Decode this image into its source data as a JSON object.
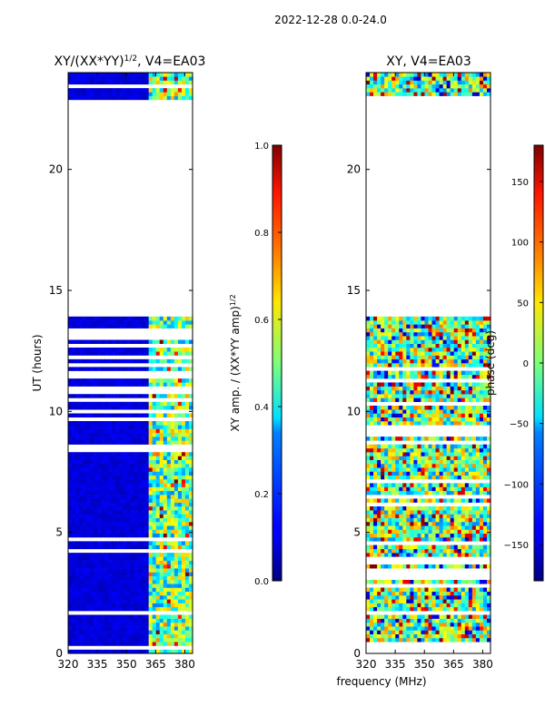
{
  "page_title": "2022-12-28 0.0-24.0",
  "chart_data": [
    {
      "type": "heatmap",
      "title": "XY/(XX*YY)",
      "title_exponent": "1/2",
      "title_suffix": ", V4=EA03",
      "xlabel": "",
      "ylabel": "UT (hours)",
      "xlim": [
        320,
        384
      ],
      "ylim": [
        0,
        24
      ],
      "x_ticks": [
        320,
        335,
        350,
        365,
        380
      ],
      "y_ticks": [
        0,
        5,
        10,
        15,
        20
      ],
      "data_gap_hours": [
        13.8,
        22.8
      ],
      "bright_band_mhz": [
        361,
        384
      ],
      "colorbar": {
        "label": "XY amp. / (XX*YY amp)",
        "label_exponent": "1/2",
        "range": [
          0.0,
          1.0
        ],
        "ticks": [
          "0.0",
          "0.2",
          "0.4",
          "0.6",
          "0.8",
          "1.0"
        ]
      }
    },
    {
      "type": "heatmap",
      "title": "XY, V4=EA03",
      "xlabel": "frequency (MHz)",
      "ylabel": "",
      "xlim": [
        320,
        384
      ],
      "ylim": [
        0,
        24
      ],
      "x_ticks": [
        320,
        335,
        350,
        365,
        380
      ],
      "y_ticks": [
        0,
        5,
        10,
        15,
        20
      ],
      "data_gap_hours": [
        13.8,
        22.8
      ],
      "colorbar": {
        "label": "phase (deg)",
        "range": [
          -180,
          180
        ],
        "ticks": [
          "-150",
          "-100",
          "-50",
          "0",
          "50",
          "100",
          "150"
        ]
      }
    }
  ]
}
